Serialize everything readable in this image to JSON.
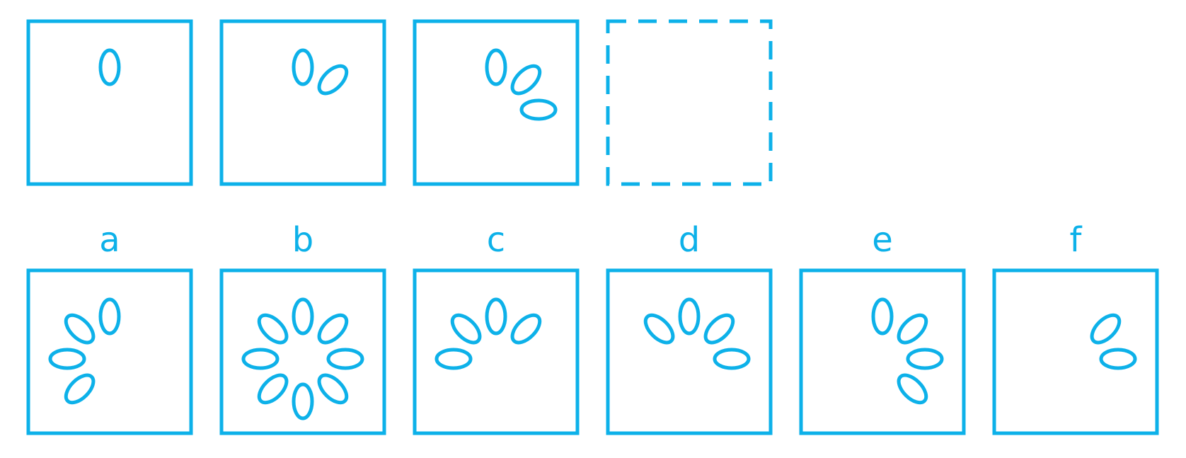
{
  "colors": {
    "stroke": "#0db1e9",
    "background": "#ffffff"
  },
  "sequence": [
    {
      "petals": [
        "N"
      ]
    },
    {
      "petals": [
        "N",
        "NE"
      ]
    },
    {
      "petals": [
        "N",
        "NE",
        "E"
      ]
    },
    {
      "petals": [],
      "placeholder": true
    }
  ],
  "options": [
    {
      "label": "a",
      "petals": [
        "N",
        "NW",
        "W",
        "SW"
      ]
    },
    {
      "label": "b",
      "petals": [
        "N",
        "NE",
        "E",
        "SE",
        "S",
        "SW",
        "W",
        "NW"
      ]
    },
    {
      "label": "c",
      "petals": [
        "N",
        "NE",
        "NW",
        "W"
      ]
    },
    {
      "label": "d",
      "petals": [
        "N",
        "NW",
        "NE",
        "E"
      ]
    },
    {
      "label": "e",
      "petals": [
        "N",
        "NE",
        "E",
        "SE"
      ]
    },
    {
      "label": "f",
      "petals": [
        "NE",
        "E"
      ]
    }
  ]
}
